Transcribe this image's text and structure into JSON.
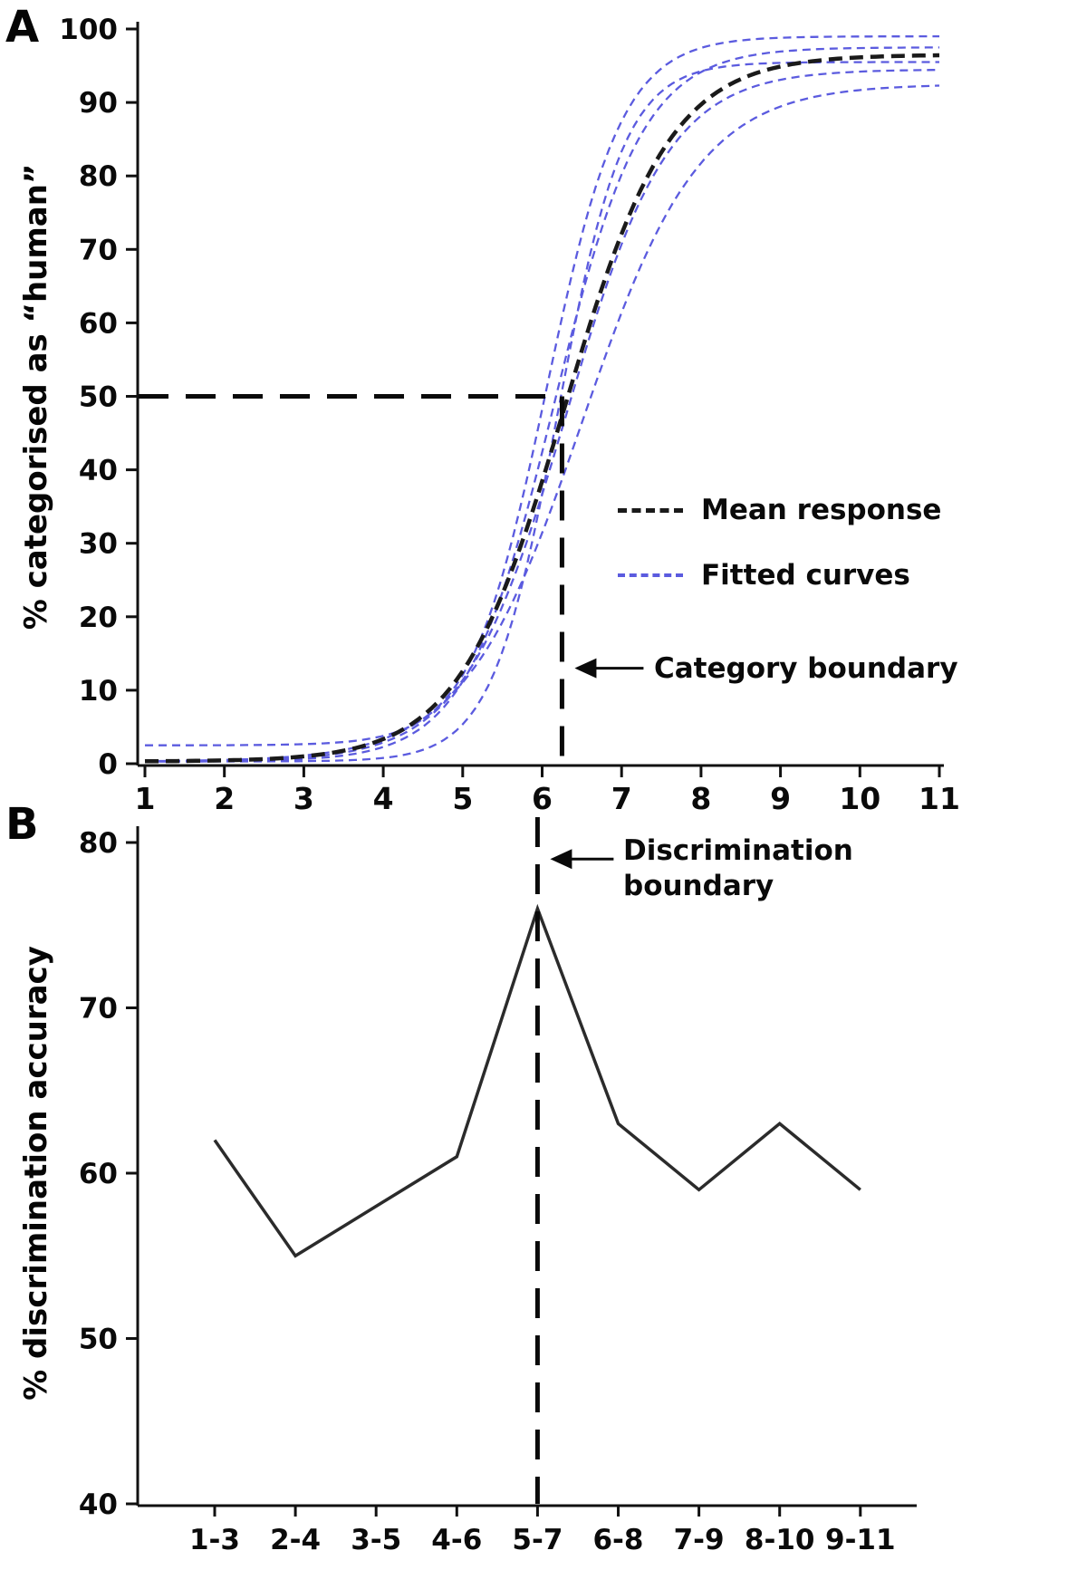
{
  "colors": {
    "mean_curve": "#1a1a1a",
    "fitted_curve": "#5b5bdf",
    "axis": "#111111",
    "data_line": "#2b2b2b",
    "boundary_dash": "#0a0a0a"
  },
  "chart_data": [
    {
      "panel": "A",
      "type": "line",
      "subtype": "psychometric-sigmoid-curves",
      "title": "",
      "xlabel": "",
      "ylabel": "% categorised as “human”",
      "xlim": [
        1,
        11
      ],
      "ylim": [
        0,
        100
      ],
      "grid": false,
      "x_ticks": [
        "1",
        "2",
        "3",
        "4",
        "5",
        "6",
        "7",
        "8",
        "9",
        "10",
        "11"
      ],
      "y_ticks": [
        "0",
        "10",
        "20",
        "30",
        "40",
        "50",
        "60",
        "70",
        "80",
        "90",
        "100"
      ],
      "legend_position": "inside-right",
      "legend": [
        {
          "label": "Mean response",
          "color": "#1a1a1a",
          "style": "dashed"
        },
        {
          "label": "Fitted curves",
          "color": "#5b5bdf",
          "style": "dashed"
        }
      ],
      "mean_response": {
        "model": "logistic",
        "x0": 6.28,
        "k": 1.5,
        "ymin": 0.3,
        "ymax": 96.5
      },
      "mean_values_at_ticks": [
        0.3,
        0.5,
        1.0,
        3.4,
        12.6,
        38,
        72,
        89.5,
        95,
        96,
        96.5
      ],
      "fitted_curves": [
        {
          "model": "logistic",
          "x0": 6.05,
          "k": 2.1,
          "ymin": 2.5,
          "ymax": 99.0
        },
        {
          "model": "logistic",
          "x0": 6.15,
          "k": 1.8,
          "ymin": 0.3,
          "ymax": 97.5
        },
        {
          "model": "logistic",
          "x0": 6.3,
          "k": 1.55,
          "ymin": 0.3,
          "ymax": 94.5
        },
        {
          "model": "logistic",
          "x0": 6.5,
          "k": 1.35,
          "ymin": 0.3,
          "ymax": 92.5
        },
        {
          "model": "logistic",
          "x0": 6.2,
          "k": 2.4,
          "ymin": 0.3,
          "ymax": 95.5
        }
      ],
      "category_boundary": {
        "x": 6.25,
        "y": 50,
        "annotation": "Category boundary",
        "annotation_y": 13
      }
    },
    {
      "panel": "B",
      "type": "line",
      "title": "",
      "xlabel": "",
      "ylabel": "% discrimination accuracy",
      "ylim": [
        40,
        80
      ],
      "grid": false,
      "y_ticks": [
        "40",
        "50",
        "60",
        "70",
        "80"
      ],
      "categories": [
        "1-3",
        "2-4",
        "3-5",
        "4-6",
        "5-7",
        "6-8",
        "7-9",
        "8-10",
        "9-11"
      ],
      "values": [
        62,
        55,
        58,
        61,
        76,
        63,
        59,
        63,
        59
      ],
      "boundary": {
        "category": "5-7",
        "annotation": [
          "Discrimination",
          "boundary"
        ],
        "annotation_y": 79
      }
    }
  ]
}
